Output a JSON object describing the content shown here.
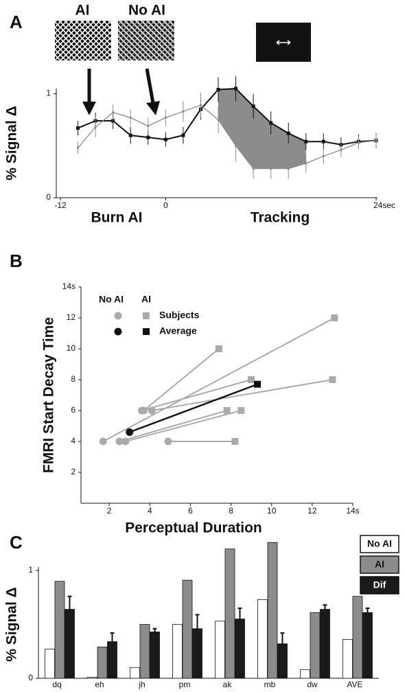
{
  "chart_data": [
    {
      "type": "line",
      "panel": "A",
      "y_label": "% Signal Δ",
      "annotations": [
        "AI",
        "No AI",
        "Burn AI",
        "Tracking"
      ],
      "x": [
        -10,
        -8,
        -6,
        -4,
        -2,
        0,
        2,
        4,
        6,
        8,
        10,
        12,
        14,
        16,
        18,
        20,
        22,
        24
      ],
      "xlim": [
        -12,
        24
      ],
      "xticks": [
        -12,
        0,
        {
          "value": 24,
          "label": "24sec"
        }
      ],
      "ylim": [
        0,
        1.05
      ],
      "yticks": [
        0,
        1
      ],
      "shaded_x": [
        6,
        16
      ],
      "shade_color": "#8c8c8c",
      "series": [
        {
          "color": "#111111",
          "values": [
            0.67,
            0.74,
            0.74,
            0.6,
            0.58,
            0.56,
            0.6,
            0.85,
            1.04,
            1.05,
            0.88,
            0.72,
            0.62,
            0.54,
            0.54,
            0.51,
            0.54,
            0.55
          ],
          "errors": [
            0.07,
            0.08,
            0.08,
            0.08,
            0.07,
            0.07,
            0.08,
            0.1,
            0.12,
            0.12,
            0.12,
            0.11,
            0.1,
            0.08,
            0.08,
            0.07,
            0.07,
            0.07
          ]
        },
        {
          "color": "#8a8a8a",
          "values": [
            0.48,
            0.68,
            0.82,
            0.77,
            0.69,
            0.77,
            0.83,
            0.89,
            0.75,
            0.5,
            0.28,
            0.28,
            0.28,
            0.33,
            0.4,
            0.46,
            0.53,
            0.55
          ],
          "errors": [
            0.06,
            0.1,
            0.08,
            0.08,
            0.08,
            0.08,
            0.1,
            0.12,
            0.13,
            0.15,
            0.1,
            0.1,
            0.1,
            0.09,
            0.08,
            0.07,
            0.06,
            0.06
          ]
        }
      ]
    },
    {
      "type": "scatter",
      "panel": "B",
      "y_label": "FMRI Start Decay Time",
      "x_label": "Perceptual Duration",
      "legend_headers": [
        "No AI",
        "AI"
      ],
      "xlim": [
        0,
        14
      ],
      "xticks": [
        2,
        4,
        6,
        8,
        10,
        12,
        {
          "value": 14,
          "label": "14s"
        }
      ],
      "ylim": [
        0,
        14
      ],
      "yticks": [
        2,
        4,
        6,
        8,
        10,
        12,
        {
          "value": 14,
          "label": "14s"
        }
      ],
      "series": [
        {
          "name": "Subjects",
          "color": "#aaaaaa",
          "no_ai_x": [
            1.7,
            3.7,
            3.6,
            4.1,
            2.5,
            2.8,
            4.9
          ],
          "no_ai_y": [
            4,
            6,
            6,
            6,
            4,
            4,
            4
          ],
          "ai_x": [
            13.1,
            7.4,
            9.0,
            13.0,
            7.8,
            8.5,
            8.2
          ],
          "ai_y": [
            12,
            10,
            8,
            8,
            6,
            6,
            4
          ]
        },
        {
          "name": "Average",
          "color": "#111111",
          "no_ai_x": [
            3.0
          ],
          "no_ai_y": [
            4.6
          ],
          "ai_x": [
            9.3
          ],
          "ai_y": [
            7.7
          ]
        }
      ]
    },
    {
      "type": "bar",
      "panel": "C",
      "y_label": "% Signal Δ",
      "categories": [
        "dq",
        "eh",
        "jh",
        "pm",
        "ak",
        "mb",
        "dw",
        "AVE"
      ],
      "ylim": [
        0,
        1.3
      ],
      "yticks": [
        0,
        1
      ],
      "series": [
        {
          "name": "No AI",
          "color": "#ffffff",
          "values": [
            0.27,
            0.01,
            0.1,
            0.5,
            0.53,
            0.73,
            0.08,
            0.36
          ]
        },
        {
          "name": "AI",
          "color": "#8c8c8c",
          "values": [
            0.9,
            0.29,
            0.5,
            0.91,
            1.2,
            1.26,
            0.61,
            0.76
          ]
        },
        {
          "name": "Dif",
          "color": "#1a1a1a",
          "values": [
            0.64,
            0.34,
            0.43,
            0.46,
            0.55,
            0.32,
            0.64,
            0.61
          ],
          "errors": [
            0.12,
            0.08,
            0.03,
            0.13,
            0.1,
            0.1,
            0.04,
            0.04
          ]
        }
      ]
    }
  ]
}
